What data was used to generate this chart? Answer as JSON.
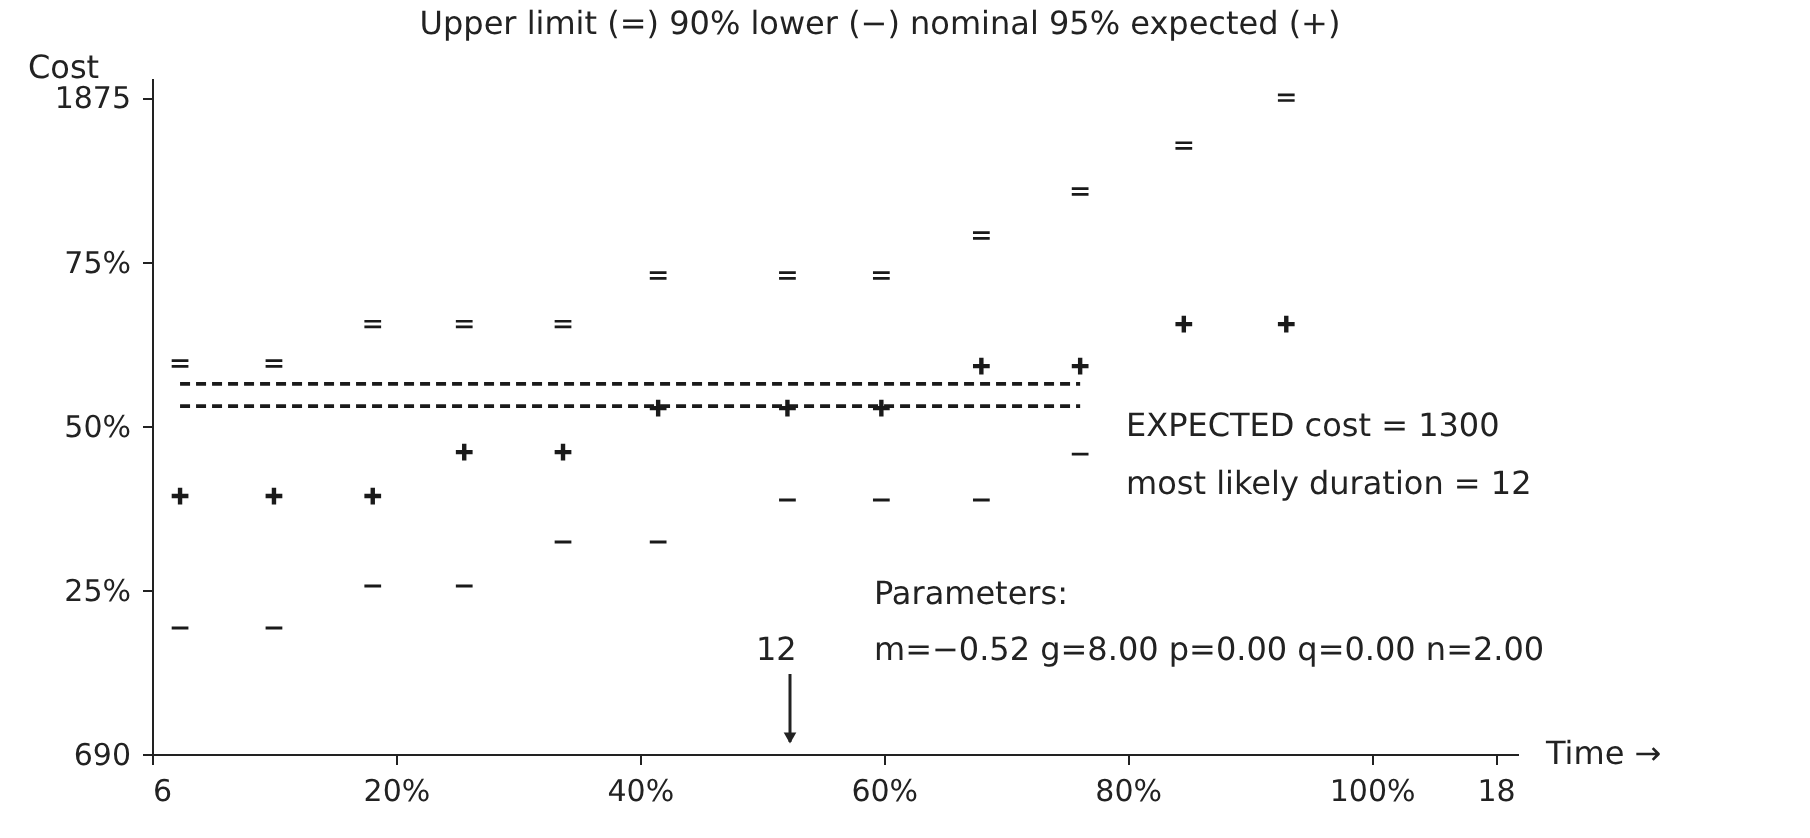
{
  "chart_data": {
    "type": "scatter",
    "title": "Upper limit (=) 90% lower (−) nominal 95% expected (+)",
    "xlabel": "Time →",
    "y2label": "Cost",
    "x": [
      2.3,
      10,
      18.1,
      25.6,
      33.7,
      41.5,
      52.1,
      59.8,
      68,
      76.1,
      84.6,
      93
    ],
    "series": [
      {
        "color": "#1a1a1a",
        "values": [
          59.5,
          59.5,
          65.5,
          65.5,
          65.5,
          72.9,
          72.9,
          72.9,
          79,
          85.7,
          92.7,
          100
        ]
      },
      {
        "color": "#1a1a1a",
        "marker": "cross",
        "values": [
          39.3,
          39.3,
          39.3,
          46,
          46,
          52.7,
          52.7,
          52.7,
          59.1,
          59.1,
          65.5,
          65.5
        ]
      },
      {
        "color": "#1a1a1a",
        "values": [
          19.2,
          19.2,
          25.6,
          25.6,
          32.3,
          32.3,
          38.7,
          38.7,
          38.7,
          45.7,
          null,
          null
        ]
      },
      {
        "type": "line",
        "line_style": "dashed",
        "color": "#1a1a1a",
        "values": [
          56.4,
          56.4,
          56.4,
          56.4,
          56.4,
          56.4,
          56.4,
          56.4,
          56.4,
          56.4,
          null,
          null
        ]
      },
      {
        "type": "line",
        "line_style": "dashed",
        "color": "#1a1a1a",
        "values": [
          53,
          53,
          53,
          53,
          53,
          53,
          53,
          53,
          53,
          53,
          null,
          null
        ]
      }
    ],
    "xlim": [
      0,
      112
    ],
    "ylim": [
      0,
      103
    ],
    "xticks": [
      {
        "value": 20,
        "label": "20%"
      },
      {
        "value": 40,
        "label": "40%"
      },
      {
        "value": 60,
        "label": "60%"
      },
      {
        "value": 80,
        "label": "80%"
      },
      {
        "value": 100,
        "label": "100%"
      }
    ],
    "yticks": [
      {
        "value": 25,
        "label": "25%"
      },
      {
        "value": 50,
        "label": "50%"
      },
      {
        "value": 75,
        "label": "75%"
      }
    ],
    "x2lim": [
      6,
      18.2
    ],
    "x2ticks": [
      6,
      18
    ],
    "y2lim": [
      690,
      1910
    ],
    "y2ticks": [
      690,
      1875
    ],
    "grid": false,
    "annotations": [
      "EXPECTED cost = 1300",
      "most likely duration = 12",
      "Parameters:",
      "m=−0.52 g=8.00 p=0.00 q=0.00 n=2.00",
      "12"
    ]
  }
}
